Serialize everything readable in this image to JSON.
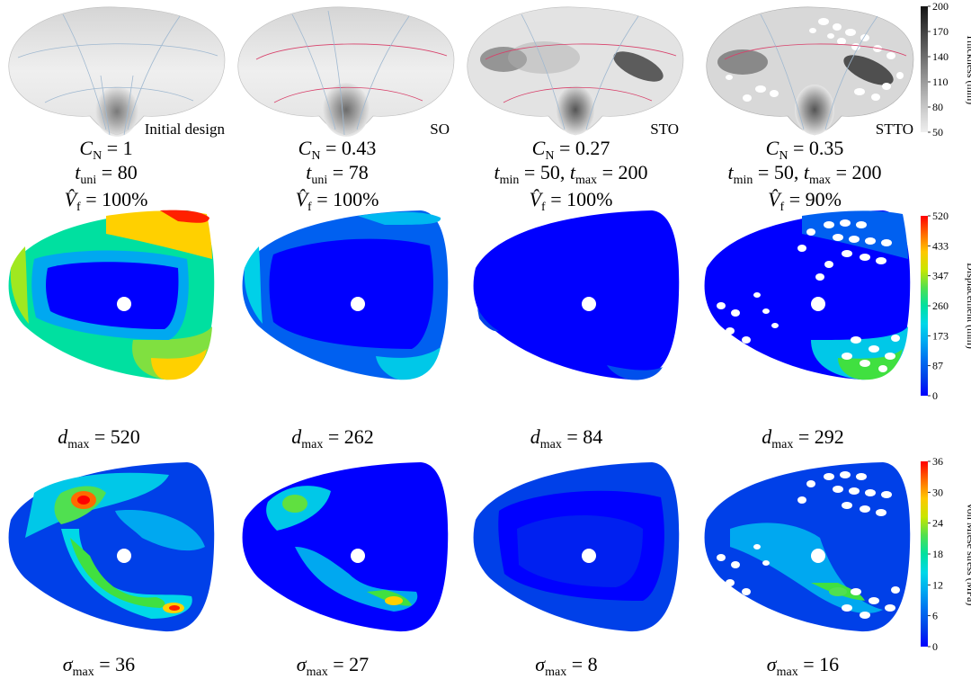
{
  "columns": [
    {
      "id": "initial",
      "shell_label": "Initial design",
      "cn_value": "1",
      "t_expr": "t_uni = 80",
      "t_sub1": "uni",
      "t_val1": "80",
      "t_sub2": "",
      "t_val2": "",
      "vf_value": "100%",
      "d_max": "520",
      "sigma_max": "36"
    },
    {
      "id": "so",
      "shell_label": "SO",
      "cn_value": "0.43",
      "t_sub1": "uni",
      "t_val1": "78",
      "t_sub2": "",
      "t_val2": "",
      "vf_value": "100%",
      "d_max": "262",
      "sigma_max": "27"
    },
    {
      "id": "sto",
      "shell_label": "STO",
      "cn_value": "0.27",
      "t_sub1": "min",
      "t_val1": "50",
      "t_sub2": "max",
      "t_val2": "200",
      "vf_value": "100%",
      "d_max": "84",
      "sigma_max": "8"
    },
    {
      "id": "stto",
      "shell_label": "STTO",
      "cn_value": "0.35",
      "t_sub1": "min",
      "t_val1": "50",
      "t_sub2": "max",
      "t_val2": "200",
      "vf_value": "90%",
      "d_max": "292",
      "sigma_max": "16"
    }
  ],
  "symbols": {
    "cn_sub": "N",
    "vf_sub": "f",
    "d_sub": "max",
    "sigma_sub": "max"
  },
  "colorbars": {
    "thickness": {
      "title": "Thickness (mm)",
      "ticks": [
        "200",
        "170",
        "140",
        "110",
        "80",
        "50"
      ],
      "colors": [
        "#141414",
        "#3a3a3a",
        "#5e5e5e",
        "#858585",
        "#aaaaaa",
        "#cfcfcf",
        "#eeeeee"
      ]
    },
    "displacement": {
      "title": "Displacement (mm)",
      "ticks": [
        "520",
        "433",
        "347",
        "260",
        "173",
        "87",
        "0"
      ],
      "colors": [
        "#ff0000",
        "#ff6a00",
        "#ffc800",
        "#c8e600",
        "#50e050",
        "#00e0a0",
        "#00d8e8",
        "#00a8f0",
        "#0070f0",
        "#0040e8",
        "#0000ff"
      ]
    },
    "stress": {
      "title": "Von Miese stress (MPa)",
      "ticks": [
        "36",
        "30",
        "24",
        "18",
        "12",
        "6",
        "0"
      ],
      "colors": [
        "#ff0000",
        "#ff6a00",
        "#ffc800",
        "#c8e600",
        "#50e050",
        "#00e0a0",
        "#00d8e8",
        "#00a8f0",
        "#0070f0",
        "#0040e8",
        "#0000ff"
      ]
    }
  },
  "palette": {
    "blue": "#0000ff",
    "mid_blue": "#0060f0",
    "cyan": "#00d8e8",
    "green": "#40e040",
    "yellow": "#ffd000",
    "red": "#ff0000",
    "shell_light": "#ededed",
    "shell_dark": "#6a6a6a",
    "curve_blue": "#7fa8cc",
    "curve_red": "#d8406a"
  }
}
